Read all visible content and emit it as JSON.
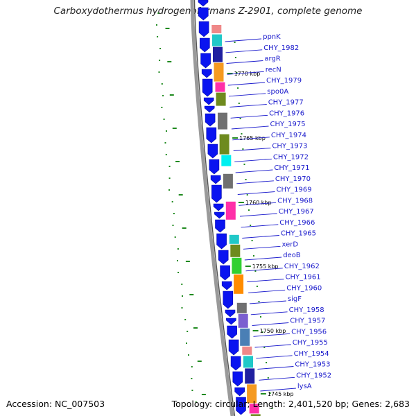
{
  "title": "Carboxydothermus hydrogenoformans Z-2901, complete genome",
  "footer": {
    "accession": "Accession: NC_007503",
    "topology": "Topology: circular; Length: 2,401,520 bp; Genes: 2,683"
  },
  "colors": {
    "cds": "#0a14f0",
    "label": "#1a1acc",
    "gc_dot": "#1f8a1f",
    "backbone": "#9a9a9a"
  },
  "position_labels": [
    "1770 kbp",
    "1765 kbp",
    "1760 kbp",
    "1755 kbp",
    "1750 kbp",
    "1745 kbp"
  ],
  "genes": [
    "ppnK",
    "CHY_1982",
    "argR",
    "recN",
    "CHY_1979",
    "spo0A",
    "CHY_1977",
    "CHY_1976",
    "CHY_1975",
    "CHY_1974",
    "CHY_1973",
    "CHY_1972",
    "CHY_1971",
    "CHY_1970",
    "CHY_1969",
    "CHY_1968",
    "CHY_1967",
    "CHY_1966",
    "CHY_1965",
    "xerD",
    "deoB",
    "CHY_1962",
    "CHY_1961",
    "CHY_1960",
    "sigF",
    "CHY_1958",
    "CHY_1957",
    "CHY_1956",
    "CHY_1955",
    "CHY_1954",
    "CHY_1953",
    "CHY_1952",
    "lysA"
  ],
  "cog_colors": [
    "#ef8888",
    "#20c8c8",
    "#2020a0",
    "#f59a20",
    "#ff2fa8",
    "#6e8a1e",
    "#707070",
    "#6e8a1e",
    "#00f0f0",
    "#707070",
    "#ff2fa8",
    "#20c8c8",
    "#6e8a1e",
    "#30d030",
    "#ff8c00",
    "#707070",
    "#7b5fd0",
    "#4a7fb5"
  ]
}
